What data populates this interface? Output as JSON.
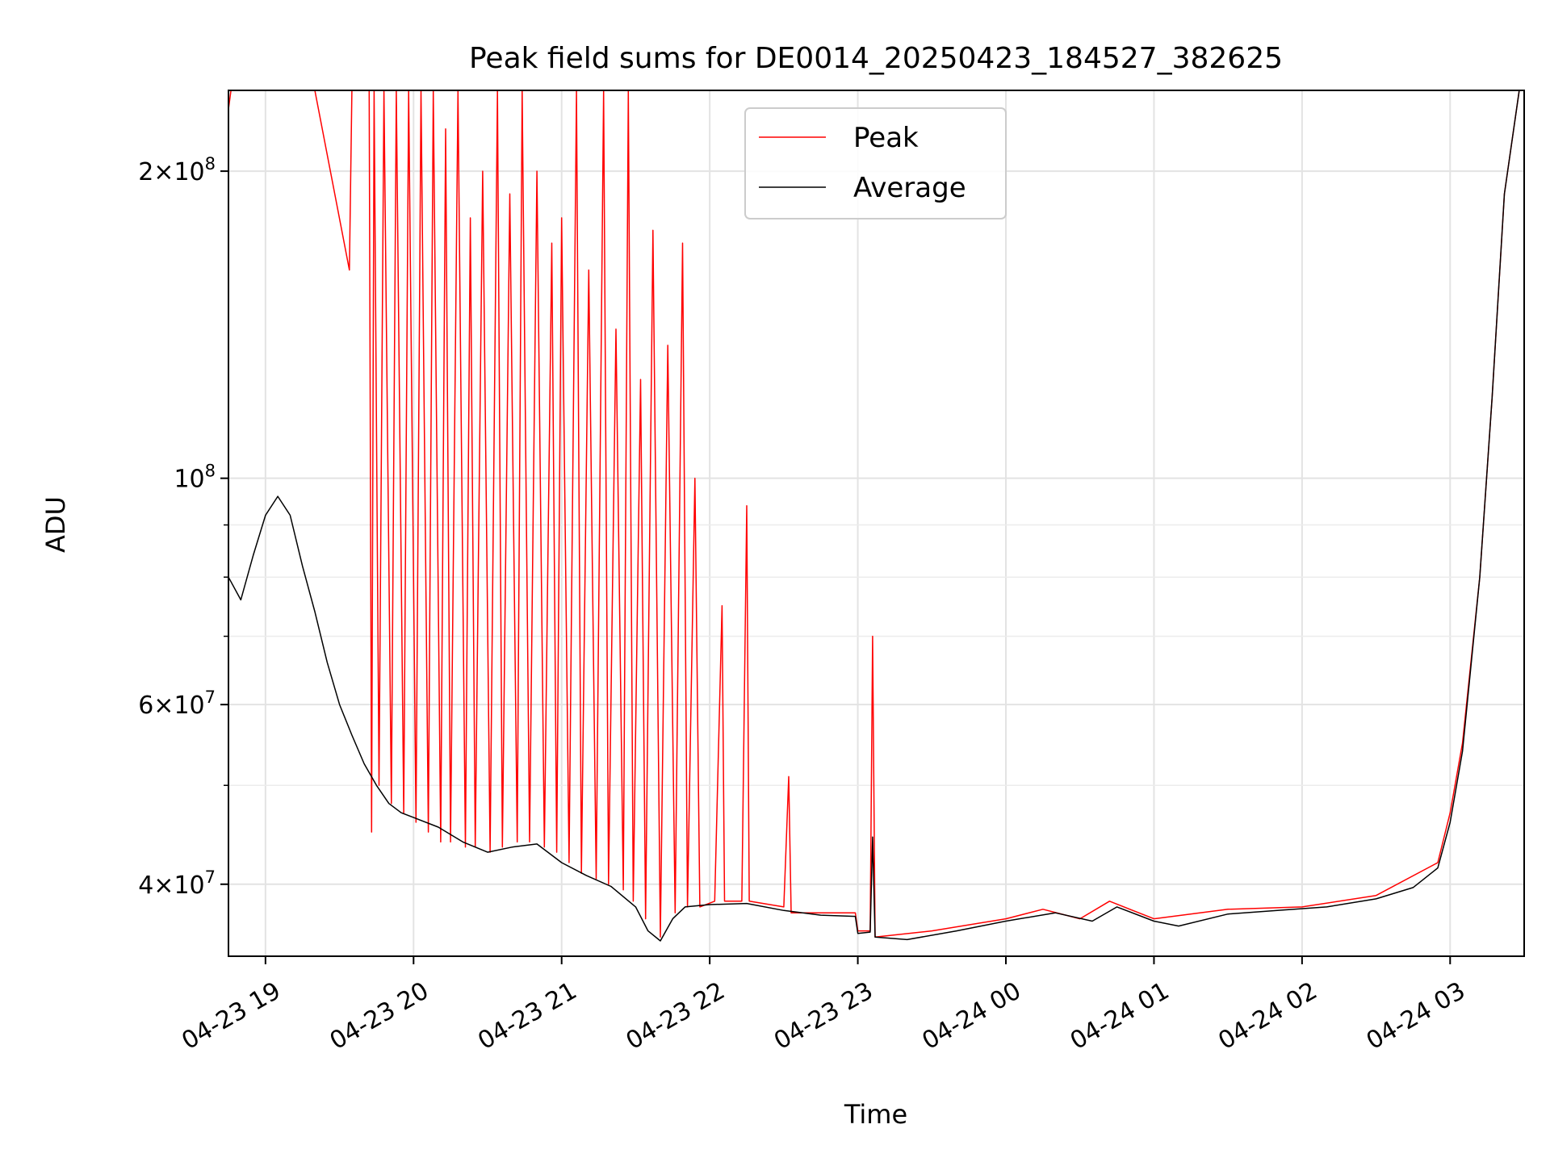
{
  "chart_data": {
    "type": "line",
    "title": "Peak field sums for DE0014_20250423_184527_382625",
    "xlabel": "Time",
    "ylabel": "ADU",
    "yscale": "log",
    "ylim": [
      34000000,
      240000000
    ],
    "xlim": [
      "04-23 18:45",
      "04-24 03:30"
    ],
    "grid": true,
    "legend_position": "upper-center",
    "x_tick_labels": [
      "04-23 19",
      "04-23 20",
      "04-23 21",
      "04-23 22",
      "04-23 23",
      "04-24 00",
      "04-24 01",
      "04-24 02",
      "04-24 03"
    ],
    "y_major_ticks": [
      {
        "value": 40000000,
        "mantissa": "4",
        "exponent": "7"
      },
      {
        "value": 60000000,
        "mantissa": "6",
        "exponent": "7"
      },
      {
        "value": 100000000,
        "mantissa": "",
        "exponent": "8"
      },
      {
        "value": 200000000,
        "mantissa": "2",
        "exponent": "8"
      }
    ],
    "y_minor_gridlines": [
      50000000,
      70000000,
      80000000,
      90000000
    ],
    "series": [
      {
        "name": "Peak",
        "color": "#ff0000",
        "points": [
          [
            "04-23 18:45",
            230000000
          ],
          [
            "04-23 18:46",
            240000000
          ],
          [
            "04-23 19:00",
            240000000
          ],
          [
            "04-23 19:20",
            240000000
          ],
          [
            "04-23 19:34",
            160000000
          ],
          [
            "04-23 19:35",
            240000000
          ],
          [
            "04-23 19:42",
            240000000
          ],
          [
            "04-23 19:43",
            45000000
          ],
          [
            "04-23 19:44",
            240000000
          ],
          [
            "04-23 19:46",
            50000000
          ],
          [
            "04-23 19:48",
            240000000
          ],
          [
            "04-23 19:51",
            48000000
          ],
          [
            "04-23 19:53",
            240000000
          ],
          [
            "04-23 19:56",
            47000000
          ],
          [
            "04-23 19:58",
            240000000
          ],
          [
            "04-23 20:01",
            46000000
          ],
          [
            "04-23 20:03",
            240000000
          ],
          [
            "04-23 20:06",
            45000000
          ],
          [
            "04-23 20:08",
            240000000
          ],
          [
            "04-23 20:11",
            44000000
          ],
          [
            "04-23 20:13",
            220000000
          ],
          [
            "04-23 20:15",
            44000000
          ],
          [
            "04-23 20:18",
            240000000
          ],
          [
            "04-23 20:21",
            43500000
          ],
          [
            "04-23 20:23",
            180000000
          ],
          [
            "04-23 20:25",
            43500000
          ],
          [
            "04-23 20:28",
            200000000
          ],
          [
            "04-23 20:31",
            43000000
          ],
          [
            "04-23 20:34",
            240000000
          ],
          [
            "04-23 20:36",
            43500000
          ],
          [
            "04-23 20:39",
            190000000
          ],
          [
            "04-23 20:42",
            44000000
          ],
          [
            "04-23 20:44",
            240000000
          ],
          [
            "04-23 20:47",
            44000000
          ],
          [
            "04-23 20:50",
            200000000
          ],
          [
            "04-23 20:53",
            43500000
          ],
          [
            "04-23 20:56",
            170000000
          ],
          [
            "04-23 20:58",
            43000000
          ],
          [
            "04-23 21:00",
            180000000
          ],
          [
            "04-23 21:03",
            42000000
          ],
          [
            "04-23 21:06",
            240000000
          ],
          [
            "04-23 21:08",
            41000000
          ],
          [
            "04-23 21:11",
            160000000
          ],
          [
            "04-23 21:14",
            40500000
          ],
          [
            "04-23 21:17",
            240000000
          ],
          [
            "04-23 21:19",
            40000000
          ],
          [
            "04-23 21:22",
            140000000
          ],
          [
            "04-23 21:25",
            39500000
          ],
          [
            "04-23 21:27",
            240000000
          ],
          [
            "04-23 21:29",
            38500000
          ],
          [
            "04-23 21:32",
            125000000
          ],
          [
            "04-23 21:34",
            37000000
          ],
          [
            "04-23 21:37",
            175000000
          ],
          [
            "04-23 21:40",
            35500000
          ],
          [
            "04-23 21:43",
            135000000
          ],
          [
            "04-23 21:46",
            37500000
          ],
          [
            "04-23 21:49",
            170000000
          ],
          [
            "04-23 21:51",
            38000000
          ],
          [
            "04-23 21:54",
            100000000
          ],
          [
            "04-23 21:56",
            38000000
          ],
          [
            "04-23 22:02",
            38500000
          ],
          [
            "04-23 22:05",
            75000000
          ],
          [
            "04-23 22:06",
            38500000
          ],
          [
            "04-23 22:13",
            38500000
          ],
          [
            "04-23 22:15",
            94000000
          ],
          [
            "04-23 22:16",
            38500000
          ],
          [
            "04-23 22:30",
            38000000
          ],
          [
            "04-23 22:32",
            51000000
          ],
          [
            "04-23 22:33",
            37500000
          ],
          [
            "04-23 22:59",
            37500000
          ],
          [
            "04-23 23:00",
            36000000
          ],
          [
            "04-23 23:05",
            36000000
          ],
          [
            "04-23 23:06",
            70000000
          ],
          [
            "04-23 23:07",
            35500000
          ],
          [
            "04-23 23:30",
            36000000
          ],
          [
            "04-24 00:00",
            37000000
          ],
          [
            "04-24 00:15",
            37800000
          ],
          [
            "04-24 00:30",
            37000000
          ],
          [
            "04-24 00:42",
            38500000
          ],
          [
            "04-24 01:00",
            37000000
          ],
          [
            "04-24 01:30",
            37800000
          ],
          [
            "04-24 02:00",
            38000000
          ],
          [
            "04-24 02:30",
            39000000
          ],
          [
            "04-24 02:55",
            42000000
          ],
          [
            "04-24 03:00",
            47000000
          ],
          [
            "04-24 03:05",
            55000000
          ],
          [
            "04-24 03:12",
            80000000
          ],
          [
            "04-24 03:17",
            120000000
          ],
          [
            "04-24 03:22",
            190000000
          ],
          [
            "04-24 03:28",
            240000000
          ]
        ]
      },
      {
        "name": "Average",
        "color": "#000000",
        "points": [
          [
            "04-23 18:45",
            80000000
          ],
          [
            "04-23 18:50",
            76000000
          ],
          [
            "04-23 18:55",
            84000000
          ],
          [
            "04-23 19:00",
            92000000
          ],
          [
            "04-23 19:05",
            96000000
          ],
          [
            "04-23 19:10",
            92000000
          ],
          [
            "04-23 19:15",
            82000000
          ],
          [
            "04-23 19:20",
            74000000
          ],
          [
            "04-23 19:25",
            66000000
          ],
          [
            "04-23 19:30",
            60000000
          ],
          [
            "04-23 19:35",
            56000000
          ],
          [
            "04-23 19:40",
            52500000
          ],
          [
            "04-23 19:45",
            50000000
          ],
          [
            "04-23 19:50",
            48000000
          ],
          [
            "04-23 19:55",
            47000000
          ],
          [
            "04-23 20:00",
            46500000
          ],
          [
            "04-23 20:10",
            45500000
          ],
          [
            "04-23 20:20",
            44000000
          ],
          [
            "04-23 20:30",
            43000000
          ],
          [
            "04-23 20:40",
            43500000
          ],
          [
            "04-23 20:50",
            43800000
          ],
          [
            "04-23 21:00",
            42000000
          ],
          [
            "04-23 21:10",
            40800000
          ],
          [
            "04-23 21:20",
            39800000
          ],
          [
            "04-23 21:30",
            38000000
          ],
          [
            "04-23 21:35",
            36000000
          ],
          [
            "04-23 21:40",
            35200000
          ],
          [
            "04-23 21:45",
            37000000
          ],
          [
            "04-23 21:50",
            38000000
          ],
          [
            "04-23 22:00",
            38200000
          ],
          [
            "04-23 22:15",
            38300000
          ],
          [
            "04-23 22:30",
            37700000
          ],
          [
            "04-23 22:45",
            37300000
          ],
          [
            "04-23 22:59",
            37200000
          ],
          [
            "04-23 23:00",
            35800000
          ],
          [
            "04-23 23:05",
            35900000
          ],
          [
            "04-23 23:06",
            44500000
          ],
          [
            "04-23 23:07",
            35500000
          ],
          [
            "04-23 23:20",
            35300000
          ],
          [
            "04-23 23:40",
            36000000
          ],
          [
            "04-24 00:00",
            36800000
          ],
          [
            "04-24 00:20",
            37500000
          ],
          [
            "04-24 00:35",
            36800000
          ],
          [
            "04-24 00:45",
            38000000
          ],
          [
            "04-24 01:00",
            36800000
          ],
          [
            "04-24 01:10",
            36400000
          ],
          [
            "04-24 01:30",
            37400000
          ],
          [
            "04-24 01:50",
            37700000
          ],
          [
            "04-24 02:10",
            38000000
          ],
          [
            "04-24 02:30",
            38700000
          ],
          [
            "04-24 02:45",
            39700000
          ],
          [
            "04-24 02:55",
            41500000
          ],
          [
            "04-24 03:00",
            46000000
          ],
          [
            "04-24 03:05",
            54000000
          ],
          [
            "04-24 03:12",
            80000000
          ],
          [
            "04-24 03:17",
            120000000
          ],
          [
            "04-24 03:22",
            190000000
          ],
          [
            "04-24 03:28",
            240000000
          ]
        ]
      }
    ]
  }
}
